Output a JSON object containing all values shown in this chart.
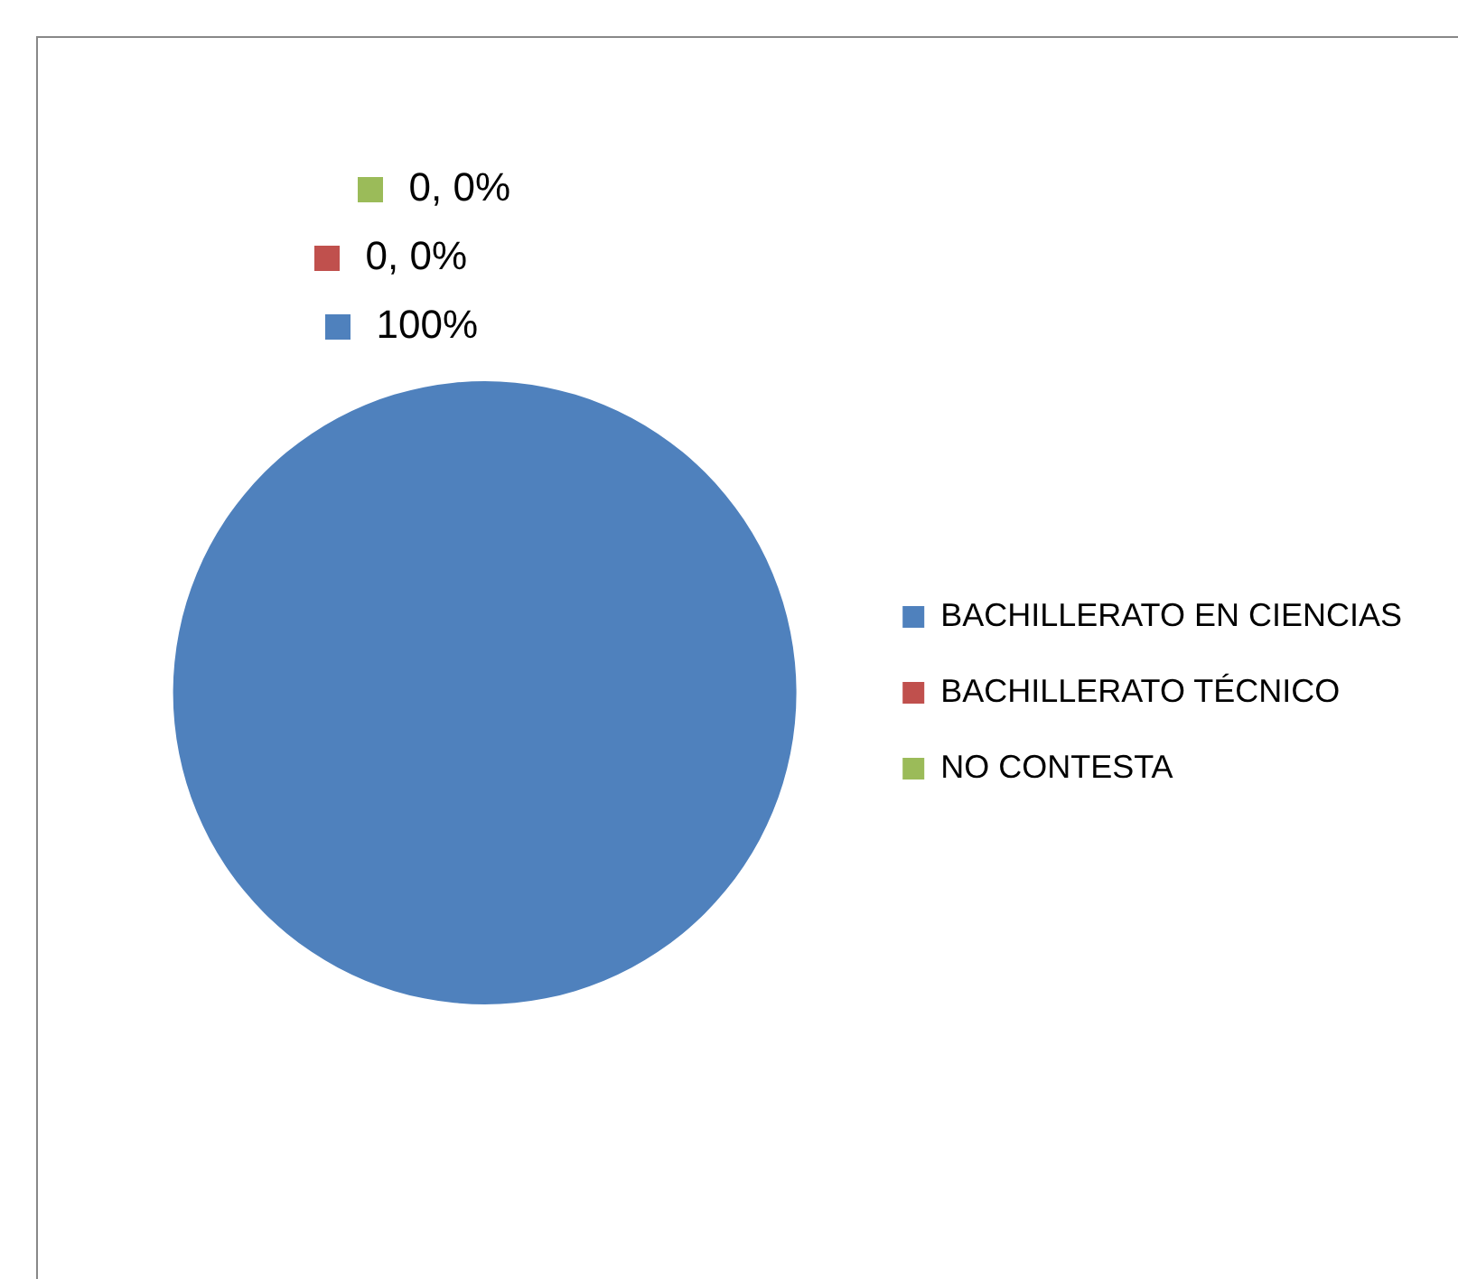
{
  "chart_data": {
    "type": "pie",
    "categories": [
      "BACHILLERATO EN CIENCIAS",
      "BACHILLERATO TÉCNICO",
      "NO CONTESTA"
    ],
    "values": [
      100,
      0,
      0
    ],
    "colors": [
      "#4f81bd",
      "#c0504d",
      "#9bbb59"
    ],
    "value_labels": [
      "100%",
      "0, 0%",
      "0, 0%"
    ],
    "legend": "right"
  }
}
